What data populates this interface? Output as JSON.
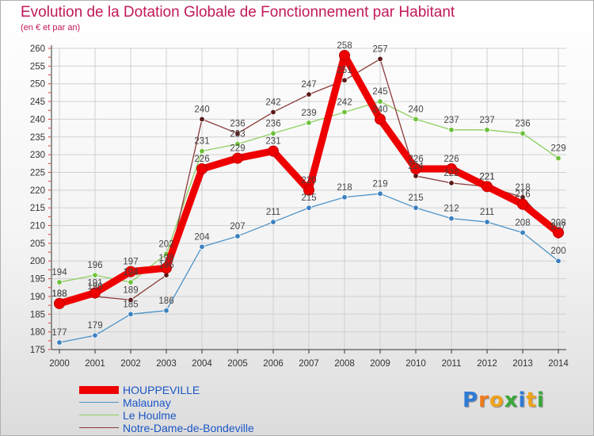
{
  "header": {
    "title": "Evolution de la Dotation Globale de Fonctionnement par Habitant",
    "subtitle": "(en € et par an)"
  },
  "logo": {
    "letters": [
      "P",
      "r",
      "o",
      "x",
      "i",
      "t",
      "i"
    ]
  },
  "chart_data": {
    "type": "line",
    "title": "Evolution de la Dotation Globale de Fonctionnement par Habitant",
    "ylabel": "(en € et par an)",
    "xlabel": "",
    "x": [
      "2000",
      "2001",
      "2002",
      "2003",
      "2004",
      "2005",
      "2006",
      "2007",
      "2008",
      "2009",
      "2010",
      "2011",
      "2012",
      "2013",
      "2014"
    ],
    "ylim": [
      175,
      260
    ],
    "yticks": [
      175,
      180,
      185,
      190,
      195,
      200,
      205,
      210,
      215,
      220,
      225,
      230,
      235,
      240,
      245,
      250,
      255,
      260
    ],
    "grid": true,
    "legend_position": "bottom-left",
    "series": [
      {
        "name": "Malaunay",
        "color": "#4d93c8",
        "dot": "#3b80c0",
        "values": [
          177,
          179,
          185,
          186,
          204,
          207,
          211,
          215,
          218,
          219,
          215,
          212,
          211,
          208,
          200
        ]
      },
      {
        "name": "Le Houlme",
        "color": "#8fd060",
        "dot": "#6cc23a",
        "values": [
          194,
          196,
          194,
          202,
          231,
          233,
          236,
          239,
          242,
          245,
          240,
          237,
          237,
          236,
          229
        ]
      },
      {
        "name": "Notre-Dame-de-Bondeville",
        "color": "#8b3a3a",
        "dot": "#5a1818",
        "values": [
          188,
          190,
          189,
          196,
          240,
          236,
          242,
          247,
          251,
          257,
          224,
          222,
          221,
          218,
          207
        ]
      },
      {
        "name": "HOUPPEVILLE",
        "color": "#ee0000",
        "dot": "#ee0000",
        "values": [
          188,
          191,
          197,
          198,
          226,
          229,
          231,
          220,
          258,
          240,
          226,
          226,
          221,
          216,
          208
        ]
      }
    ]
  }
}
